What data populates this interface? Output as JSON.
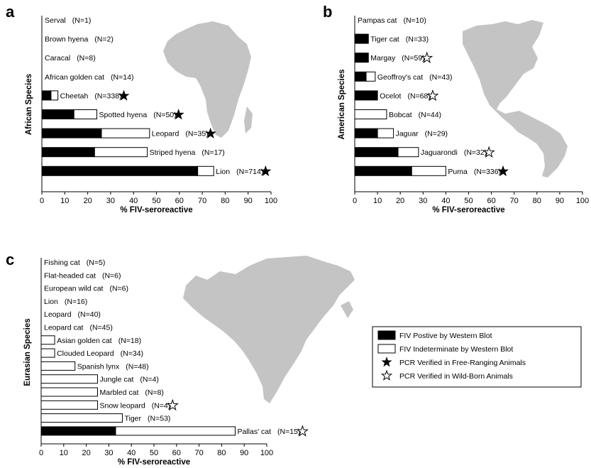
{
  "chart_data": [
    {
      "type": "bar",
      "panel_label": "a",
      "title": "",
      "ylabel": "African Species",
      "xlabel": "% FIV-seroreactive",
      "xlim": [
        0,
        100
      ],
      "xticks": [
        0,
        10,
        20,
        30,
        40,
        50,
        60,
        70,
        80,
        90,
        100
      ],
      "grid": false,
      "background_map": "Africa",
      "categories": [
        "Serval",
        "Brown hyena",
        "Caracal",
        "African golden cat",
        "Cheetah",
        "Spotted hyena",
        "Leopard",
        "Striped hyena",
        "Lion"
      ],
      "sample_sizes": [
        "(N=1)",
        "(N=2)",
        "(N=8)",
        "(N=14)",
        "(N=338)",
        "(N=50)",
        "(N=35)",
        "(N=17)",
        "(N=714)"
      ],
      "series": [
        {
          "name": "FIV Postive by Western Blot",
          "values": [
            0,
            0,
            0,
            0,
            4,
            14,
            26,
            23,
            68
          ]
        },
        {
          "name": "FIV Indeterminate by Western Blot",
          "values": [
            0,
            0,
            0,
            0,
            3,
            10,
            21,
            23,
            7
          ]
        }
      ],
      "pcr_markers": [
        "",
        "",
        "",
        "",
        "free-ranging",
        "free-ranging",
        "free-ranging",
        "",
        "free-ranging"
      ]
    },
    {
      "type": "bar",
      "panel_label": "b",
      "title": "",
      "ylabel": "American Species",
      "xlabel": "% FIV-seroreactive",
      "xlim": [
        0,
        100
      ],
      "xticks": [
        0,
        10,
        20,
        30,
        40,
        50,
        60,
        70,
        80,
        90,
        100
      ],
      "grid": false,
      "background_map": "Americas",
      "categories": [
        "Pampas cat",
        "Tiger cat",
        "Margay",
        "Geoffroy's cat",
        "Ocelot",
        "Bobcat",
        "Jaguar",
        "Jaguarondi",
        "Puma"
      ],
      "sample_sizes": [
        "(N=10)",
        "(N=33)",
        "(N=59)",
        "(N=43)",
        "(N=68)",
        "(N=44)",
        "(N=29)",
        "(N=32)",
        "(N=336)"
      ],
      "series": [
        {
          "name": "FIV Postive by Western Blot",
          "values": [
            0,
            6,
            6,
            5,
            10,
            0,
            10,
            19,
            25
          ]
        },
        {
          "name": "FIV Indeterminate by Western Blot",
          "values": [
            0,
            0,
            0,
            4,
            0,
            14,
            7,
            9,
            15
          ]
        }
      ],
      "pcr_markers": [
        "",
        "",
        "wild-born",
        "",
        "wild-born",
        "",
        "",
        "wild-born",
        "free-ranging"
      ]
    },
    {
      "type": "bar",
      "panel_label": "c",
      "title": "",
      "ylabel": "Eurasian Species",
      "xlabel": "% FIV-seroreactive",
      "xlim": [
        0,
        100
      ],
      "xticks": [
        0,
        10,
        20,
        30,
        40,
        50,
        60,
        70,
        80,
        90,
        100
      ],
      "grid": false,
      "background_map": "Eurasia",
      "categories": [
        "Fishing cat",
        "Flat-headed cat",
        "European wild cat",
        "Lion",
        "Leopard",
        "Leopard cat",
        "Asian golden cat",
        "Clouded Leopard",
        "Spanish lynx",
        "Jungle cat",
        "Marbled cat",
        "Snow leopard",
        "Tiger",
        "Pallas' cat"
      ],
      "sample_sizes": [
        "(N=5)",
        "(N=6)",
        "(N=6)",
        "(N=16)",
        "(N=40)",
        "(N=45)",
        "(N=18)",
        "(N=34)",
        "(N=48)",
        "(N=4)",
        "(N=8)",
        "(N=4)",
        "(N=53)",
        "(N=15)"
      ],
      "series": [
        {
          "name": "FIV Postive by Western Blot",
          "values": [
            0,
            0,
            0,
            0,
            0,
            0,
            0,
            0,
            0,
            0,
            0,
            0,
            0,
            33
          ]
        },
        {
          "name": "FIV Indeterminate by Western Blot",
          "values": [
            0,
            0,
            0,
            0,
            0,
            0,
            6,
            6,
            15,
            25,
            25,
            25,
            36,
            53
          ]
        }
      ],
      "pcr_markers": [
        "",
        "",
        "",
        "",
        "",
        "",
        "",
        "",
        "",
        "",
        "",
        "wild-born",
        "",
        "wild-born"
      ]
    }
  ],
  "legend": {
    "placement": "right of panel c",
    "entries": [
      {
        "key": "positive",
        "label": "FIV Postive by Western Blot",
        "symbol": "black-box"
      },
      {
        "key": "indeterminate",
        "label": "FIV Indeterminate by Western Blot",
        "symbol": "white-box"
      },
      {
        "key": "free-ranging",
        "label": "PCR Verified in Free-Ranging Animals",
        "symbol": "filled-star-icon"
      },
      {
        "key": "wild-born",
        "label": "PCR Verified in Wild-Born Animals",
        "symbol": "open-star-icon"
      }
    ]
  },
  "colors": {
    "positive_fill": "#000000",
    "indeterminate_fill": "#ffffff",
    "bar_stroke": "#000000",
    "map_fill": "#c4c4c4"
  }
}
